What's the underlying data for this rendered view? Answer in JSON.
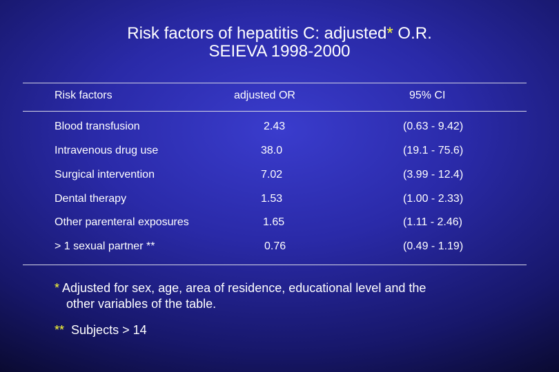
{
  "title": {
    "line1_before": "Risk factors of hepatitis C: adjusted",
    "line1_star": "*",
    "line1_after": " O.R.",
    "line2": "SEIEVA 1998-2000"
  },
  "table": {
    "headers": [
      "Risk factors",
      "adjusted OR",
      "95% CI"
    ],
    "rows": [
      [
        "Blood transfusion",
        "2.43",
        "(0.63 - 9.42)"
      ],
      [
        "Intravenous drug use",
        "38.0",
        "(19.1 - 75.6)"
      ],
      [
        "Surgical intervention",
        "7.02",
        "(3.99 - 12.4)"
      ],
      [
        "Dental therapy",
        "1.53",
        "(1.00 - 2.33)"
      ],
      [
        "Other parenteral exposures",
        "1.65",
        "(1.11 - 2.46)"
      ],
      [
        "> 1 sexual partner **",
        "0.76",
        "(0.49 - 1.19)"
      ]
    ]
  },
  "footnotes": {
    "note1_marker": "*",
    "note1_line1": "Adjusted for sex, age, area of residence, educational level and the",
    "note1_line2": "other variables of the table.",
    "note2_marker": "**",
    "note2_text": "Subjects > 14"
  },
  "colors": {
    "background": "#2a2aa8",
    "text": "#ffffff",
    "accent_asterisk": "#ffff33"
  }
}
